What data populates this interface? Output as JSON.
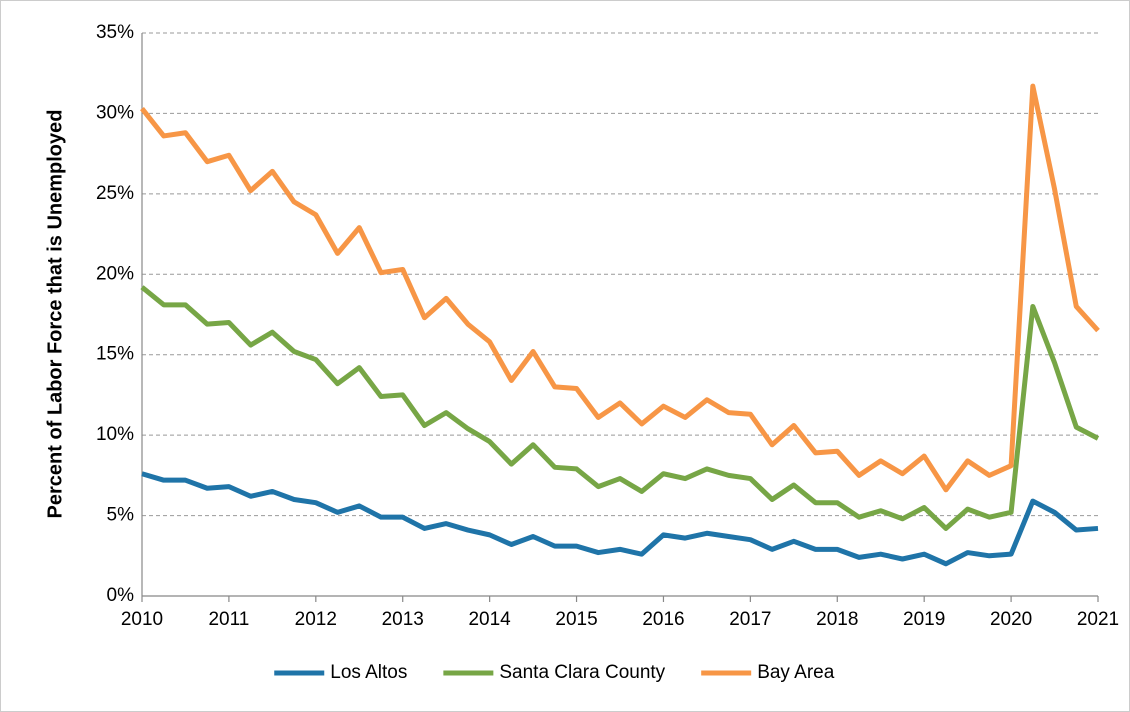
{
  "chart_data": {
    "type": "line",
    "y_label": "Percent of Labor Force that is Unemployed",
    "x": [
      2010,
      2010.25,
      2010.5,
      2010.75,
      2011,
      2011.25,
      2011.5,
      2011.75,
      2012,
      2012.25,
      2012.5,
      2012.75,
      2013,
      2013.25,
      2013.5,
      2013.75,
      2014,
      2014.25,
      2014.5,
      2014.75,
      2015,
      2015.25,
      2015.5,
      2015.75,
      2016,
      2016.25,
      2016.5,
      2016.75,
      2017,
      2017.25,
      2017.5,
      2017.75,
      2018,
      2018.25,
      2018.5,
      2018.75,
      2019,
      2019.25,
      2019.5,
      2019.75,
      2020,
      2020.25,
      2020.5,
      2020.75,
      2021
    ],
    "series": [
      {
        "name": "Los Altos",
        "color": "#1f74a8",
        "values": [
          7.6,
          7.2,
          7.2,
          6.7,
          6.8,
          6.2,
          6.5,
          6.0,
          5.8,
          5.2,
          5.6,
          4.9,
          4.9,
          4.2,
          4.5,
          4.1,
          3.8,
          3.2,
          3.7,
          3.1,
          3.1,
          2.7,
          2.9,
          2.6,
          3.8,
          3.6,
          3.9,
          3.7,
          3.5,
          2.9,
          3.4,
          2.9,
          2.9,
          2.4,
          2.6,
          2.3,
          2.6,
          2.0,
          2.7,
          2.5,
          2.6,
          5.9,
          5.2,
          4.1,
          4.2
        ]
      },
      {
        "name": "Santa Clara County",
        "color": "#77a646",
        "values": [
          19.2,
          18.1,
          18.1,
          16.9,
          17.0,
          15.6,
          16.4,
          15.2,
          14.7,
          13.2,
          14.2,
          12.4,
          12.5,
          10.6,
          11.4,
          10.4,
          9.6,
          8.2,
          9.4,
          8.0,
          7.9,
          6.8,
          7.3,
          6.5,
          7.6,
          7.3,
          7.9,
          7.5,
          7.3,
          6.0,
          6.9,
          5.8,
          5.8,
          4.9,
          5.3,
          4.8,
          5.5,
          4.2,
          5.4,
          4.9,
          5.2,
          18.0,
          14.5,
          10.5,
          9.8
        ]
      },
      {
        "name": "Bay Area",
        "color": "#f79646",
        "values": [
          30.3,
          28.6,
          28.8,
          27.0,
          27.4,
          25.2,
          26.4,
          24.5,
          23.7,
          21.3,
          22.9,
          20.1,
          20.3,
          17.3,
          18.5,
          16.9,
          15.8,
          13.4,
          15.2,
          13.0,
          12.9,
          11.1,
          12.0,
          10.7,
          11.8,
          11.1,
          12.2,
          11.4,
          11.3,
          9.4,
          10.6,
          8.9,
          9.0,
          7.5,
          8.4,
          7.6,
          8.7,
          6.6,
          8.4,
          7.5,
          8.1,
          31.7,
          25.3,
          18.0,
          16.5
        ]
      }
    ],
    "xlim": [
      2010,
      2021
    ],
    "xticks": [
      2010,
      2011,
      2012,
      2013,
      2014,
      2015,
      2016,
      2017,
      2018,
      2019,
      2020,
      2021
    ],
    "ylim": [
      0,
      35
    ],
    "yticks": [
      {
        "value": 0,
        "label": "0%"
      },
      {
        "value": 5,
        "label": "5%"
      },
      {
        "value": 10,
        "label": "10%"
      },
      {
        "value": 15,
        "label": "15%"
      },
      {
        "value": 20,
        "label": "20%"
      },
      {
        "value": 25,
        "label": "25%"
      },
      {
        "value": 30,
        "label": "30%"
      },
      {
        "value": 35,
        "label": "35%"
      }
    ],
    "grid": true,
    "legend": "bottom"
  }
}
